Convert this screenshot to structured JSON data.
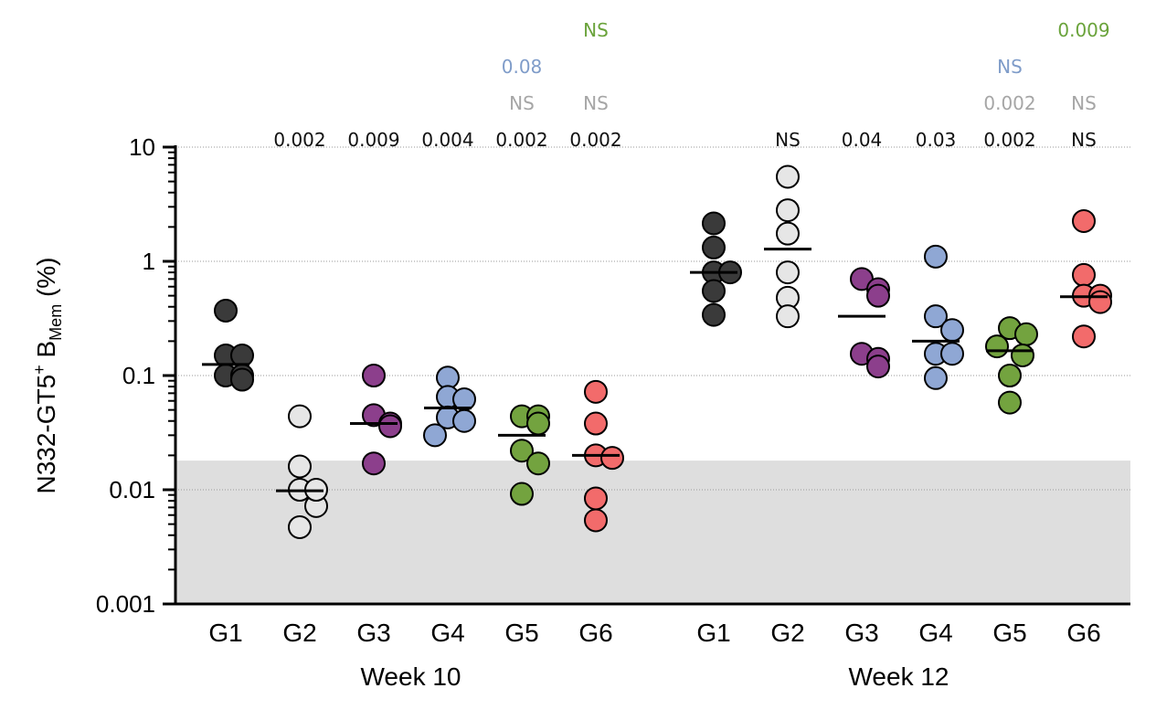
{
  "chart_data": {
    "type": "scatter",
    "y_scale": "log",
    "ylim": [
      0.001,
      10
    ],
    "y_ticks": [
      {
        "value": 10,
        "label": "10"
      },
      {
        "value": 1,
        "label": "1"
      },
      {
        "value": 0.1,
        "label": "0.1"
      },
      {
        "value": 0.01,
        "label": "0.01"
      },
      {
        "value": 0.001,
        "label": "0.001"
      }
    ],
    "ylabel": {
      "main": "N332-GT5",
      "sup": "+",
      "b": " B",
      "sub": "Mem",
      "unit": " (%)"
    },
    "limit_of_detection": 0.018,
    "grid": "dotted horizontal at decades",
    "colors": {
      "G1": "#3a3a3a",
      "G2": "#e6e6e6",
      "G3": "#8c3f8c",
      "G4": "#8fa7d4",
      "G5": "#73a33f",
      "G6": "#f26b6b",
      "pval_black": "#111111",
      "pval_gray": "#a6a6a6",
      "pval_blue": "#7f9cc9",
      "pval_green": "#6aa33b",
      "lod_shade": "#dedede"
    },
    "weeks": [
      {
        "label": "Week 10",
        "groups": [
          {
            "name": "G1",
            "values": [
              0.37,
              0.15,
              0.15,
              0.1,
              0.1,
              0.092
            ],
            "median": 0.125
          },
          {
            "name": "G2",
            "values": [
              0.044,
              0.016,
              0.01,
              0.0072,
              0.0047,
              0.01
            ],
            "median": 0.0098
          },
          {
            "name": "G3",
            "values": [
              0.1,
              0.045,
              0.038,
              0.036,
              0.017
            ],
            "median": 0.038
          },
          {
            "name": "G4",
            "values": [
              0.096,
              0.065,
              0.062,
              0.043,
              0.04,
              0.03
            ],
            "median": 0.052
          },
          {
            "name": "G5",
            "values": [
              0.044,
              0.044,
              0.038,
              0.022,
              0.017,
              0.0092
            ],
            "median": 0.03
          },
          {
            "name": "G6",
            "values": [
              0.072,
              0.038,
              0.02,
              0.019,
              0.0084,
              0.0054
            ],
            "median": 0.02
          }
        ],
        "pvalue_rows": [
          {
            "color": "pval_green",
            "values": [
              "",
              "",
              "",
              "",
              "",
              "NS"
            ]
          },
          {
            "color": "pval_blue",
            "values": [
              "",
              "",
              "",
              "",
              "0.08",
              ""
            ]
          },
          {
            "color": "pval_gray",
            "values": [
              "",
              "",
              "",
              "",
              "NS",
              "NS"
            ]
          },
          {
            "color": "pval_black",
            "values": [
              "",
              "0.002",
              "0.009",
              "0.004",
              "0.002",
              "0.002"
            ]
          }
        ]
      },
      {
        "label": "Week 12",
        "groups": [
          {
            "name": "G1",
            "values": [
              2.15,
              1.32,
              0.8,
              0.8,
              0.55,
              0.34
            ],
            "median": 0.8
          },
          {
            "name": "G2",
            "values": [
              5.5,
              2.8,
              1.75,
              0.8,
              0.48,
              0.33
            ],
            "median": 1.28
          },
          {
            "name": "G3",
            "values": [
              0.7,
              0.57,
              0.5,
              0.155,
              0.14,
              0.12
            ],
            "median": 0.33
          },
          {
            "name": "G4",
            "values": [
              1.1,
              0.33,
              0.25,
              0.155,
              0.155,
              0.095
            ],
            "median": 0.2
          },
          {
            "name": "G5",
            "values": [
              0.26,
              0.23,
              0.18,
              0.15,
              0.1,
              0.058
            ],
            "median": 0.165
          },
          {
            "name": "G6",
            "values": [
              2.25,
              0.76,
              0.5,
              0.5,
              0.44,
              0.22
            ],
            "median": 0.49
          }
        ],
        "pvalue_rows": [
          {
            "color": "pval_green",
            "values": [
              "",
              "",
              "",
              "",
              "",
              "0.009"
            ]
          },
          {
            "color": "pval_blue",
            "values": [
              "",
              "",
              "",
              "",
              "NS",
              ""
            ]
          },
          {
            "color": "pval_gray",
            "values": [
              "",
              "",
              "",
              "",
              "0.002",
              "NS"
            ]
          },
          {
            "color": "pval_black",
            "values": [
              "",
              "NS",
              "0.04",
              "0.03",
              "0.002",
              "NS"
            ]
          }
        ]
      }
    ]
  }
}
